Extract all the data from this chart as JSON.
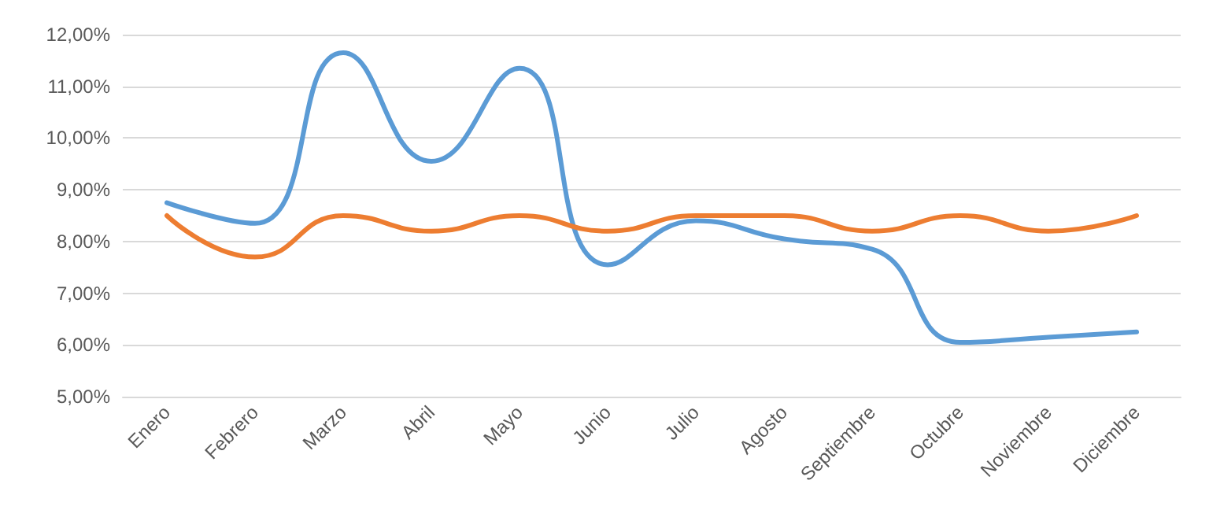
{
  "chart_data": {
    "type": "line",
    "categories": [
      "Enero",
      "Febrero",
      "Marzo",
      "Abril",
      "Mayo",
      "Junio",
      "Julio",
      "Agosto",
      "Septiembre",
      "Octubre",
      "Noviembre",
      "Diciembre"
    ],
    "series": [
      {
        "color": "#5b9bd5",
        "values": [
          8.75,
          8.35,
          11.65,
          9.55,
          11.35,
          7.55,
          8.4,
          8.05,
          7.85,
          6.05,
          6.15,
          6.25
        ]
      },
      {
        "color": "#ed7d31",
        "values": [
          8.5,
          7.7,
          8.5,
          8.2,
          8.5,
          8.2,
          8.5,
          8.5,
          8.2,
          8.5,
          8.2,
          8.5
        ]
      }
    ],
    "ylim": [
      5,
      12
    ],
    "yticks": [
      {
        "value": 5,
        "label": "5,00%"
      },
      {
        "value": 6,
        "label": "6,00%"
      },
      {
        "value": 7,
        "label": "7,00%"
      },
      {
        "value": 8,
        "label": "8,00%"
      },
      {
        "value": 9,
        "label": "9,00%"
      },
      {
        "value": 10,
        "label": "10,00%"
      },
      {
        "value": 11,
        "label": "11,00%"
      },
      {
        "value": 12,
        "label": "12,00%"
      }
    ],
    "grid": "y",
    "marker": "none",
    "line_style": "solid"
  }
}
